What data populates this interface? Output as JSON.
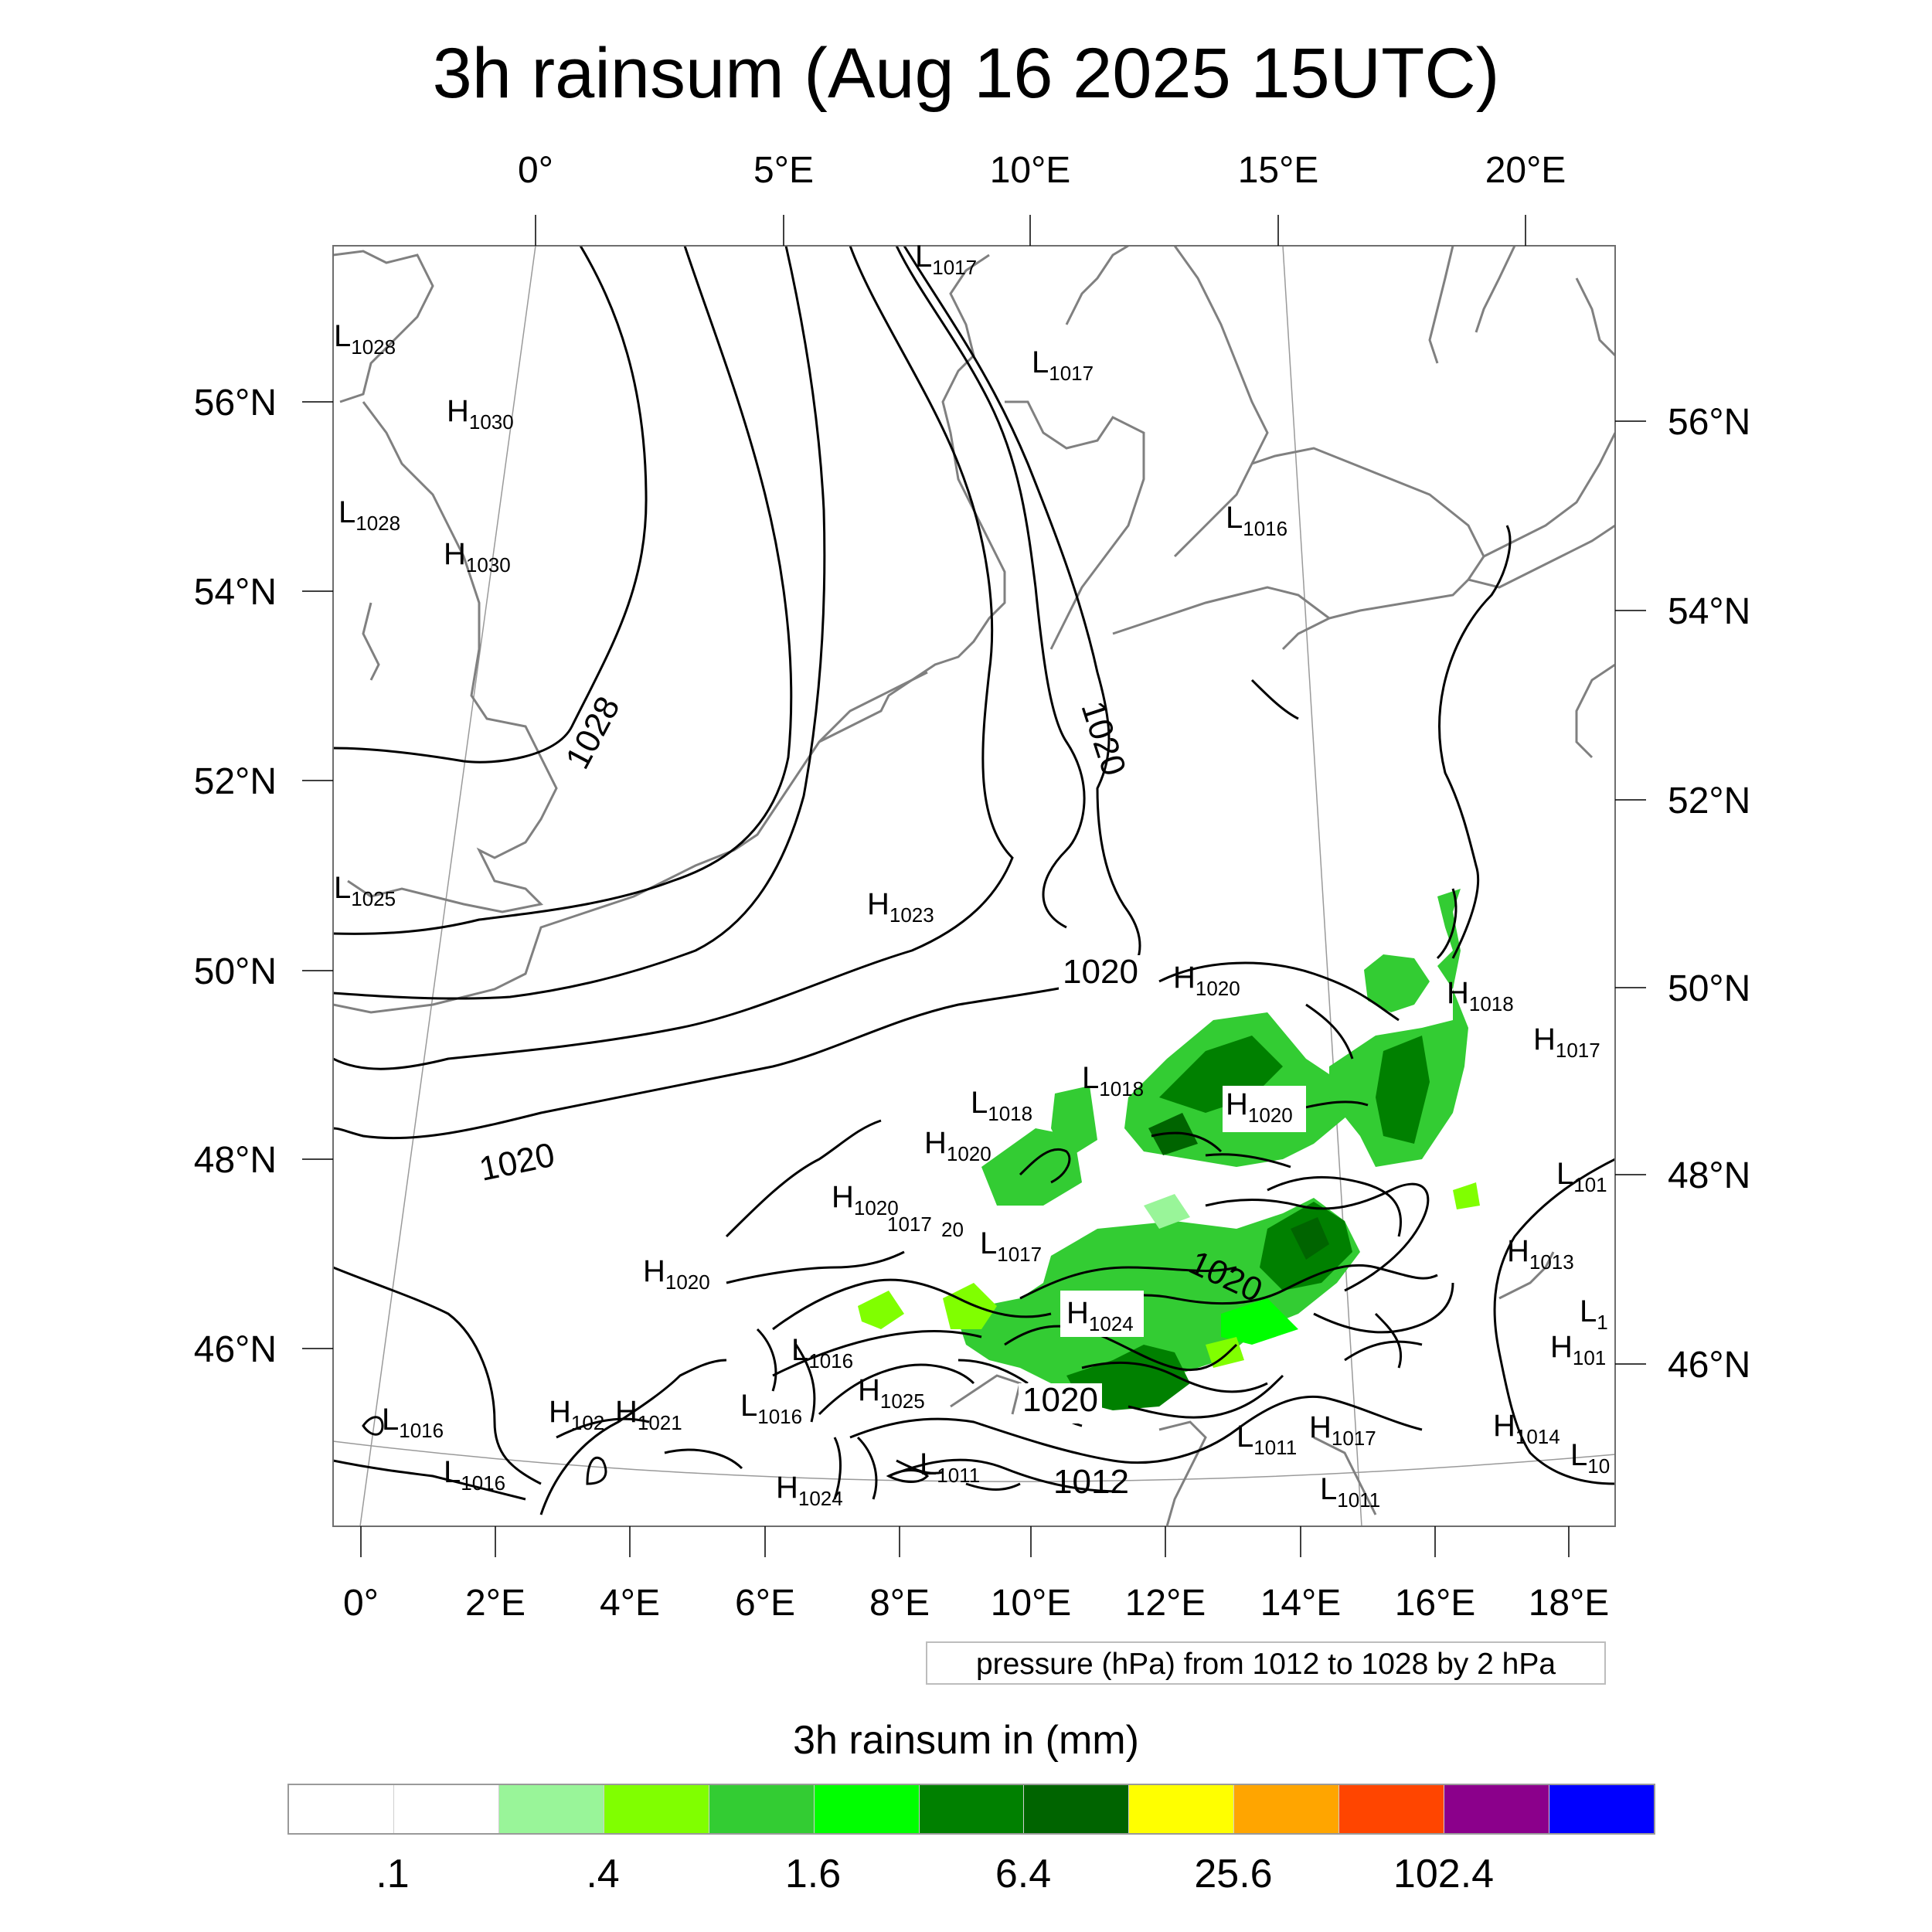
{
  "title": "3h rainsum (Aug 16 2025 15UTC)",
  "top_longitude_labels": [
    "0°",
    "5°E",
    "10°E",
    "15°E",
    "20°E"
  ],
  "bottom_longitude_labels": [
    "0°",
    "2°E",
    "4°E",
    "6°E",
    "8°E",
    "10°E",
    "12°E",
    "14°E",
    "16°E",
    "18°E"
  ],
  "left_latitude_labels": [
    "56°N",
    "54°N",
    "52°N",
    "50°N",
    "48°N",
    "46°N"
  ],
  "right_latitude_labels": [
    "56°N",
    "54°N",
    "52°N",
    "50°N",
    "48°N",
    "46°N"
  ],
  "pressure_centers": [
    {
      "letter": "L",
      "value": "1017"
    },
    {
      "letter": "L",
      "value": "1028"
    },
    {
      "letter": "L",
      "value": "1017"
    },
    {
      "letter": "H",
      "value": "1030"
    },
    {
      "letter": "L",
      "value": "1028"
    },
    {
      "letter": "H",
      "value": "1030"
    },
    {
      "letter": "L",
      "value": "1016"
    },
    {
      "letter": "L",
      "value": "1025"
    },
    {
      "letter": "H",
      "value": "1023"
    },
    {
      "letter": "H",
      "value": "1020"
    },
    {
      "letter": "H",
      "value": "1018"
    },
    {
      "letter": "H",
      "value": "1017"
    },
    {
      "letter": "L",
      "value": "1018"
    },
    {
      "letter": "L",
      "value": "1018"
    },
    {
      "letter": "H",
      "value": "1020"
    },
    {
      "letter": "H",
      "value": "1020"
    },
    {
      "letter": "L",
      "value": "101"
    },
    {
      "letter": "H",
      "value": "1020"
    },
    {
      "letter": "L",
      "value": "1017"
    },
    {
      "letter": "H",
      "value": "1013"
    },
    {
      "letter": "H",
      "value": "1020"
    },
    {
      "letter": "H",
      "value": "1024"
    },
    {
      "letter": "L",
      "value": "1"
    },
    {
      "letter": "H",
      "value": "101"
    },
    {
      "letter": "L",
      "value": "1016"
    },
    {
      "letter": "H",
      "value": "1025"
    },
    {
      "letter": "L",
      "value": "1016"
    },
    {
      "letter": "H",
      "value": "102"
    },
    {
      "letter": "H",
      "value": "1021"
    },
    {
      "letter": "L",
      "value": "1016"
    },
    {
      "letter": "L",
      "value": "1016"
    },
    {
      "letter": "L",
      "value": "1011"
    },
    {
      "letter": "H",
      "value": "1017"
    },
    {
      "letter": "H",
      "value": "1014"
    },
    {
      "letter": "L",
      "value": "10"
    },
    {
      "letter": "H",
      "value": "1024"
    },
    {
      "letter": "L",
      "value": "1011"
    },
    {
      "letter": "L",
      "value": "1011"
    }
  ],
  "isobar_labels": [
    "1028",
    "1020",
    "1020",
    "1020",
    "1020",
    "1020",
    "1012",
    "1017",
    "20"
  ],
  "contour_info": "pressure (hPa) from 1012 to 1028 by 2 hPa",
  "legend": {
    "title": "3h rainsum in (mm)",
    "colors": [
      "#ffffff",
      "#ffffff",
      "#99f599",
      "#80ff00",
      "#33cc33",
      "#00ff00",
      "#008000",
      "#006400",
      "#ffff00",
      "#ffa500",
      "#ff4500",
      "#8b008b",
      "#0000ff"
    ],
    "labels": [
      ".1",
      ".4",
      "1.6",
      "6.4",
      "25.6",
      "102.4"
    ]
  }
}
